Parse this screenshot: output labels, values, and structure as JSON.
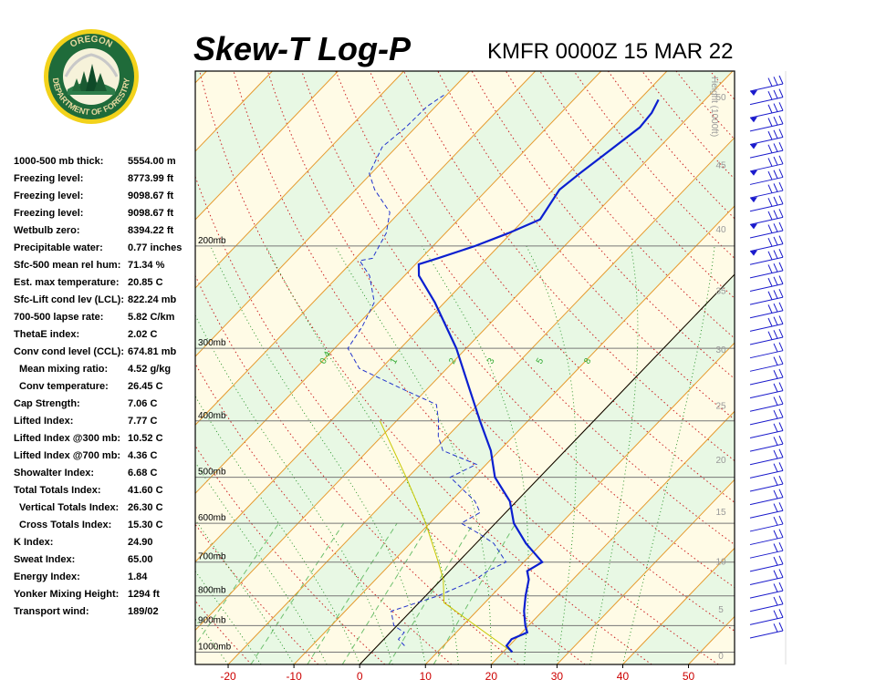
{
  "header": {
    "title": "Skew-T Log-P",
    "station": "KMFR 0000Z 15 MAR 22"
  },
  "logo": {
    "top_text": "OREGON",
    "bottom_text": "DEPARTMENT OF FORESTRY",
    "ring_color": "#1f6b3a",
    "text_color": "#e8d9a0"
  },
  "stats": [
    {
      "label": "1000-500 mb thick:",
      "value": "5554.00 m",
      "indent": false
    },
    {
      "label": "Freezing level:",
      "value": "8773.99 ft",
      "indent": false
    },
    {
      "label": "Freezing level:",
      "value": "9098.67 ft",
      "indent": false
    },
    {
      "label": "Freezing level:",
      "value": "9098.67 ft",
      "indent": false
    },
    {
      "label": "Wetbulb zero:",
      "value": "8394.22 ft",
      "indent": false
    },
    {
      "label": "Precipitable water:",
      "value": "0.77 inches",
      "indent": false
    },
    {
      "label": "Sfc-500 mean rel hum:",
      "value": "71.34 %",
      "indent": false
    },
    {
      "label": "Est. max temperature:",
      "value": "20.85 C",
      "indent": false
    },
    {
      "label": "Sfc-Lift cond lev (LCL):",
      "value": "822.24 mb",
      "indent": false
    },
    {
      "label": "700-500 lapse rate:",
      "value": "5.82 C/km",
      "indent": false
    },
    {
      "label": "ThetaE index:",
      "value": "2.02 C",
      "indent": false
    },
    {
      "label": "Conv cond level (CCL):",
      "value": "674.81 mb",
      "indent": false
    },
    {
      "label": "Mean mixing ratio:",
      "value": "4.52 g/kg",
      "indent": true
    },
    {
      "label": "Conv temperature:",
      "value": "26.45 C",
      "indent": true
    },
    {
      "label": "Cap Strength:",
      "value": "7.06 C",
      "indent": false
    },
    {
      "label": "Lifted Index:",
      "value": "7.77 C",
      "indent": false
    },
    {
      "label": "Lifted Index @300 mb:",
      "value": "10.52 C",
      "indent": false
    },
    {
      "label": "Lifted Index @700 mb:",
      "value": "4.36 C",
      "indent": false
    },
    {
      "label": "Showalter Index:",
      "value": "6.68 C",
      "indent": false
    },
    {
      "label": "Total Totals Index:",
      "value": "41.60 C",
      "indent": false
    },
    {
      "label": "Vertical Totals Index:",
      "value": "26.30 C",
      "indent": true
    },
    {
      "label": "Cross Totals Index:",
      "value": "15.30 C",
      "indent": true
    },
    {
      "label": "K Index:",
      "value": "24.90",
      "indent": false
    },
    {
      "label": "Sweat Index:",
      "value": "65.00",
      "indent": false
    },
    {
      "label": "Energy Index:",
      "value": "1.84",
      "indent": false
    },
    {
      "label": "Yonker Mixing Height:",
      "value": "1294 ft",
      "indent": false
    },
    {
      "label": "Transport wind:",
      "value": "189/02",
      "indent": false
    }
  ],
  "chart_data": {
    "type": "line",
    "x_ticks": [
      -20,
      -10,
      0,
      10,
      20,
      30,
      40,
      50
    ],
    "x_range": [
      -25,
      57
    ],
    "pressure_range": [
      1050,
      100
    ],
    "isobars": [
      {
        "p": 1000,
        "label": "1000mb"
      },
      {
        "p": 900,
        "label": "900mb"
      },
      {
        "p": 800,
        "label": "800mb"
      },
      {
        "p": 700,
        "label": "700mb"
      },
      {
        "p": 600,
        "label": "600mb"
      },
      {
        "p": 500,
        "label": "500mb"
      },
      {
        "p": 400,
        "label": "400mb"
      },
      {
        "p": 300,
        "label": "300mb"
      },
      {
        "p": 200,
        "label": "200mb"
      }
    ],
    "height_axis_label": "Height (1000ft)",
    "height_ticks": [
      "0",
      "5",
      "10",
      "15",
      "20",
      "25",
      "30",
      "35",
      "40",
      "45",
      "50"
    ],
    "mixing_ratio_labels": [
      "0.4",
      "1",
      "2",
      "3",
      "5",
      "8"
    ],
    "temperature_profile": [
      [
        1000,
        21.4
      ],
      [
        975,
        19.6
      ],
      [
        950,
        19.4
      ],
      [
        925,
        20.8
      ],
      [
        900,
        19.5
      ],
      [
        850,
        17.2
      ],
      [
        800,
        15.2
      ],
      [
        750,
        13.3
      ],
      [
        725,
        11.8
      ],
      [
        700,
        12.8
      ],
      [
        650,
        7.6
      ],
      [
        600,
        2.8
      ],
      [
        550,
        -1.0
      ],
      [
        500,
        -6.8
      ],
      [
        450,
        -11.3
      ],
      [
        400,
        -17.3
      ],
      [
        350,
        -23.9
      ],
      [
        300,
        -31.5
      ],
      [
        250,
        -41.5
      ],
      [
        225,
        -47.8
      ],
      [
        215,
        -49.5
      ],
      [
        210,
        -47.5
      ],
      [
        200,
        -43.6
      ],
      [
        190,
        -40.4
      ],
      [
        180,
        -37.6
      ],
      [
        160,
        -39.0
      ],
      [
        150,
        -38.3
      ],
      [
        140,
        -37.4
      ],
      [
        125,
        -35.9
      ],
      [
        118,
        -36.2
      ],
      [
        112,
        -37.1
      ]
    ],
    "dewpoint_profile": [
      [
        975,
        4.1
      ],
      [
        950,
        2.2
      ],
      [
        925,
        2.1
      ],
      [
        900,
        -0.5
      ],
      [
        850,
        -3.0
      ],
      [
        800,
        1.9
      ],
      [
        750,
        5.2
      ],
      [
        725,
        5.8
      ],
      [
        700,
        7.3
      ],
      [
        650,
        2.7
      ],
      [
        625,
        -1.0
      ],
      [
        600,
        -5.2
      ],
      [
        575,
        -3.9
      ],
      [
        550,
        -6.3
      ],
      [
        500,
        -13.6
      ],
      [
        475,
        -11.5
      ],
      [
        450,
        -18.6
      ],
      [
        425,
        -21.4
      ],
      [
        400,
        -23.6
      ],
      [
        375,
        -26.3
      ],
      [
        350,
        -34.6
      ],
      [
        325,
        -43.3
      ],
      [
        300,
        -48.0
      ],
      [
        275,
        -49.0
      ],
      [
        250,
        -50.7
      ],
      [
        225,
        -55.3
      ],
      [
        212,
        -59.0
      ],
      [
        210,
        -57.4
      ],
      [
        205,
        -57.8
      ],
      [
        190,
        -59.0
      ],
      [
        175,
        -61.5
      ],
      [
        160,
        -67.1
      ],
      [
        150,
        -70.3
      ],
      [
        135,
        -72.2
      ],
      [
        125,
        -71.5
      ],
      [
        115,
        -71.3
      ],
      [
        110,
        -70.4
      ]
    ],
    "parcel_profile": [
      [
        1000,
        21.4
      ],
      [
        822,
        3.8
      ],
      [
        750,
        0.3
      ],
      [
        700,
        -3.0
      ],
      [
        600,
        -10.6
      ],
      [
        500,
        -20.3
      ],
      [
        400,
        -32.5
      ]
    ],
    "wind_barbs_levels": 42
  }
}
